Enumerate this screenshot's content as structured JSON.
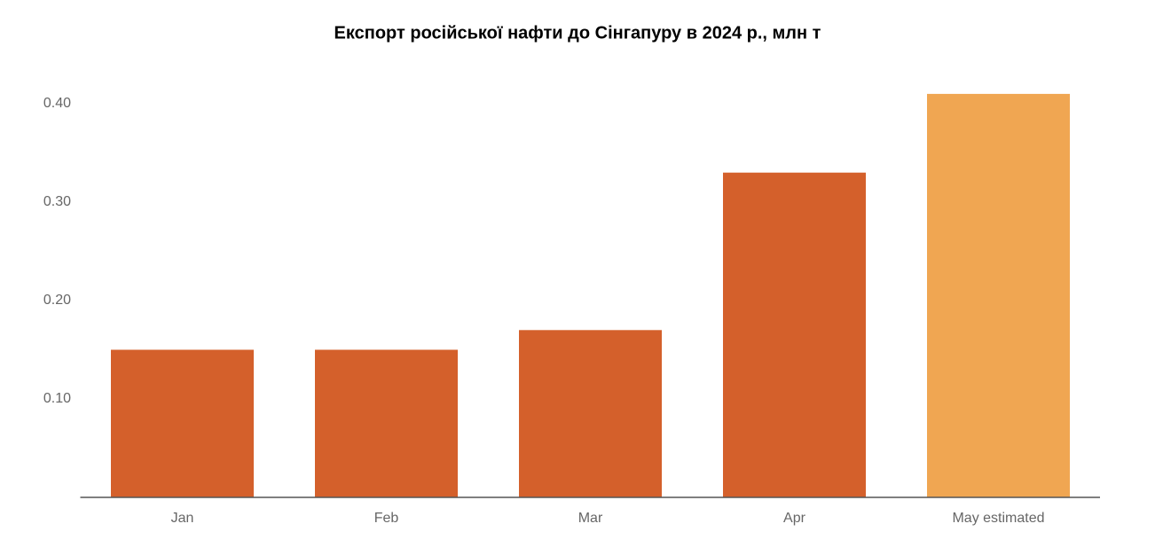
{
  "chart_data": {
    "type": "bar",
    "title": "Експорт російської нафти до Сінгапуру в 2024 р., млн т",
    "categories": [
      "Jan",
      "Feb",
      "Mar",
      "Apr",
      "May estimated"
    ],
    "values": [
      0.15,
      0.15,
      0.17,
      0.33,
      0.41
    ],
    "colors": [
      "#d4602b",
      "#d4602b",
      "#d4602b",
      "#d4602b",
      "#f0a652"
    ],
    "ylim": [
      0,
      0.43
    ],
    "yticks": [
      {
        "value": 0.1,
        "label": "0.10"
      },
      {
        "value": 0.2,
        "label": "0.20"
      },
      {
        "value": 0.3,
        "label": "0.30"
      },
      {
        "value": 0.4,
        "label": "0.40"
      }
    ],
    "grid": false
  }
}
